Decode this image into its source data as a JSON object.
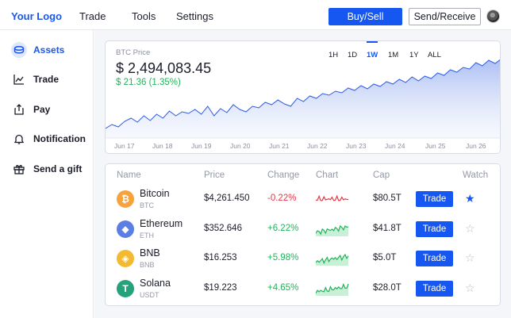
{
  "header": {
    "logo": "Your Logo",
    "nav": [
      "Trade",
      "Tools",
      "Settings"
    ],
    "buy_sell": "Buy/Sell",
    "send_receive": "Send/Receive",
    "accent_color": "#1557f0"
  },
  "sidebar": {
    "items": [
      {
        "label": "Assets",
        "icon": "coin-stack-icon",
        "active": true
      },
      {
        "label": "Trade",
        "icon": "trend-chart-icon",
        "active": false
      },
      {
        "label": "Pay",
        "icon": "share-upload-icon",
        "active": false
      },
      {
        "label": "Notification",
        "icon": "bell-icon",
        "active": false
      },
      {
        "label": "Send a gift",
        "icon": "gift-icon",
        "active": false
      }
    ]
  },
  "chart": {
    "label": "BTC Price",
    "price": "$ 2,494,083.45",
    "change": "$ 21.36 (1.35%)",
    "ranges": [
      "1H",
      "1D",
      "1W",
      "1M",
      "1Y",
      "ALL"
    ],
    "active_range": "1W",
    "dates": [
      "Jun 17",
      "Jun 18",
      "Jun 19",
      "Jun 20",
      "Jun 21",
      "Jun 22",
      "Jun 23",
      "Jun 24",
      "Jun 25",
      "Jun 26"
    ],
    "series_color": "#2b5ce6",
    "values": [
      12,
      17,
      14,
      21,
      25,
      20,
      28,
      22,
      30,
      25,
      34,
      28,
      33,
      31,
      36,
      30,
      40,
      28,
      37,
      32,
      42,
      36,
      33,
      40,
      38,
      45,
      42,
      48,
      43,
      40,
      50,
      46,
      53,
      50,
      56,
      54,
      59,
      57,
      63,
      60,
      66,
      62,
      68,
      65,
      71,
      68,
      74,
      70,
      77,
      72,
      78,
      75,
      82,
      79,
      86,
      83,
      89,
      87,
      95,
      91,
      98,
      94,
      100
    ]
  },
  "table": {
    "headers": {
      "name": "Name",
      "price": "Price",
      "change": "Change",
      "chart": "Chart",
      "cap": "Cap",
      "watch": "Watch"
    },
    "rows": [
      {
        "name": "Bitcoin",
        "symbol": "BTC",
        "price": "$4,261.450",
        "change": "-0.22%",
        "trend": "down",
        "cap": "$80.5T",
        "trade": "Trade",
        "watched": true,
        "icon_color": "#f7a23b",
        "glyph": "₿"
      },
      {
        "name": "Ethereum",
        "symbol": "ETH",
        "price": "$352.646",
        "change": "+6.22%",
        "trend": "up",
        "cap": "$41.8T",
        "trade": "Trade",
        "watched": false,
        "icon_color": "#5b7ee5",
        "glyph": "◆"
      },
      {
        "name": "BNB",
        "symbol": "BNB",
        "price": "$16.253",
        "change": "+5.98%",
        "trend": "up",
        "cap": "$5.0T",
        "trade": "Trade",
        "watched": false,
        "icon_color": "#f3ba2f",
        "glyph": "◈"
      },
      {
        "name": "Solana",
        "symbol": "USDT",
        "price": "$19.223",
        "change": "+4.65%",
        "trend": "up",
        "cap": "$28.0T",
        "trade": "Trade",
        "watched": false,
        "icon_color": "#26a17b",
        "glyph": "T"
      }
    ]
  }
}
